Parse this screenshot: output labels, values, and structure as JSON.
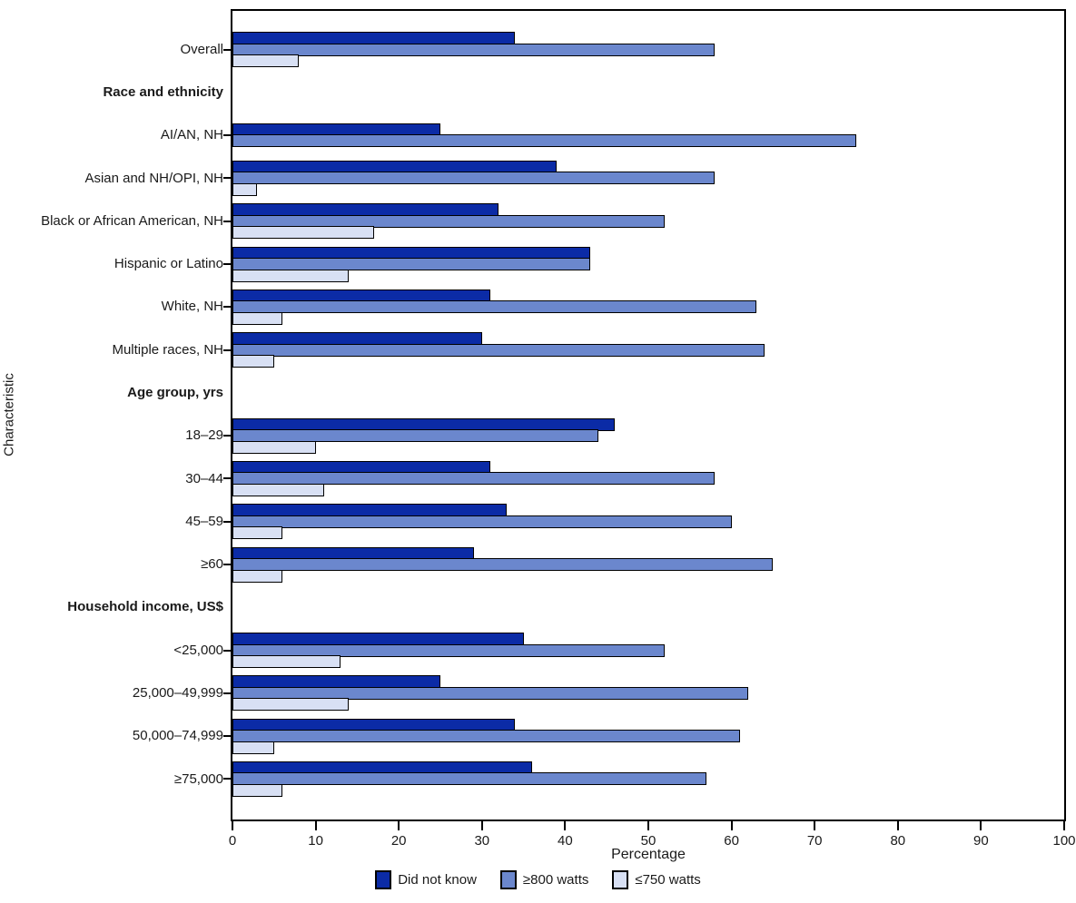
{
  "chart_data": {
    "type": "bar",
    "orientation": "horizontal",
    "title": "",
    "xlabel": "Percentage",
    "ylabel": "Characteristic",
    "xlim": [
      0,
      100
    ],
    "x_ticks": [
      0,
      10,
      20,
      30,
      40,
      50,
      60,
      70,
      80,
      90,
      100
    ],
    "grid": false,
    "legend_position": "bottom-center",
    "series": [
      {
        "name": "Did not know",
        "key": "did-not-know",
        "color": "#0b2ba6"
      },
      {
        "name": "≥800 watts",
        "key": "ge-800-watts",
        "color": "#6b87cd"
      },
      {
        "name": "≤750 watts",
        "key": "le-750-watts",
        "color": "#d8e0f4"
      }
    ],
    "rows": [
      {
        "label": "Overall",
        "type": "data",
        "values": [
          34,
          58,
          8
        ]
      },
      {
        "label": "Race and ethnicity",
        "type": "header",
        "values": null
      },
      {
        "label": "AI/AN, NH",
        "type": "data",
        "values": [
          25,
          75,
          0
        ]
      },
      {
        "label": "Asian and NH/OPI, NH",
        "type": "data",
        "values": [
          39,
          58,
          3
        ]
      },
      {
        "label": "Black or African American, NH",
        "type": "data",
        "values": [
          32,
          52,
          17
        ]
      },
      {
        "label": "Hispanic or Latino",
        "type": "data",
        "values": [
          43,
          43,
          14
        ]
      },
      {
        "label": "White, NH",
        "type": "data",
        "values": [
          31,
          63,
          6
        ]
      },
      {
        "label": "Multiple races, NH",
        "type": "data",
        "values": [
          30,
          64,
          5
        ]
      },
      {
        "label": "Age group, yrs",
        "type": "header",
        "values": null
      },
      {
        "label": "18–29",
        "type": "data",
        "values": [
          46,
          44,
          10
        ]
      },
      {
        "label": "30–44",
        "type": "data",
        "values": [
          31,
          58,
          11
        ]
      },
      {
        "label": "45–59",
        "type": "data",
        "values": [
          33,
          60,
          6
        ]
      },
      {
        "label": "≥60",
        "type": "data",
        "values": [
          29,
          65,
          6
        ]
      },
      {
        "label": "Household income, US$",
        "type": "header",
        "values": null
      },
      {
        "label": "<25,000",
        "type": "data",
        "values": [
          35,
          52,
          13
        ]
      },
      {
        "label": "25,000–49,999",
        "type": "data",
        "values": [
          25,
          62,
          14
        ]
      },
      {
        "label": "50,000–74,999",
        "type": "data",
        "values": [
          34,
          61,
          5
        ]
      },
      {
        "label": "≥75,000",
        "type": "data",
        "values": [
          36,
          57,
          6
        ]
      }
    ]
  }
}
